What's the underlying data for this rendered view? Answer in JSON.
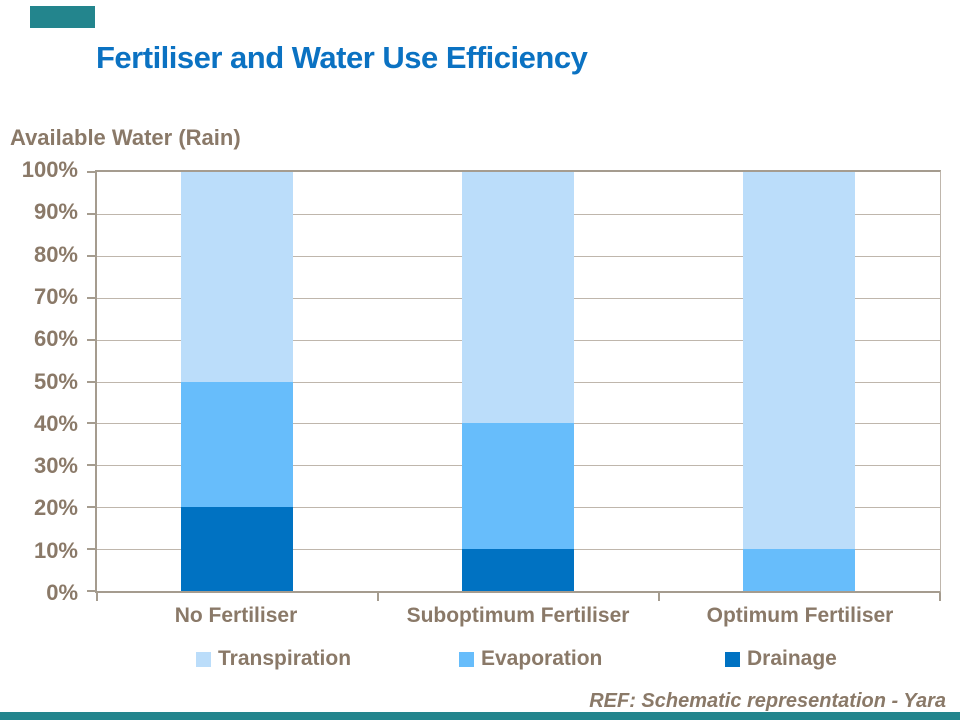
{
  "title": "Fertiliser and Water Use Efficiency",
  "footer_ref": "REF: Schematic representation - Yara",
  "colors": {
    "title_blue": "#0B72C2",
    "brown_text": "#8A7968",
    "teal_accent": "#23858D",
    "grid_line": "#BFB6AC",
    "axis_line": "#A59C8F",
    "transpiration": "#BBDDFA",
    "evaporation": "#67BDFB",
    "drainage": "#0072C2"
  },
  "chart_data": {
    "type": "bar",
    "stacked": true,
    "title": "Fertiliser and Water Use Efficiency",
    "ylabel": "Available Water (Rain)",
    "xlabel": "",
    "categories": [
      "No Fertiliser",
      "Suboptimum Fertiliser",
      "Optimum Fertiliser"
    ],
    "series": [
      {
        "name": "Transpiration",
        "color_key": "transpiration",
        "values": [
          50,
          60,
          90
        ]
      },
      {
        "name": "Evaporation",
        "color_key": "evaporation",
        "values": [
          30,
          30,
          10
        ]
      },
      {
        "name": "Drainage",
        "color_key": "drainage",
        "values": [
          20,
          10,
          0
        ]
      }
    ],
    "ylim": [
      0,
      100
    ],
    "y_ticks": [
      "100%",
      "90%",
      "80%",
      "70%",
      "60%",
      "50%",
      "40%",
      "30%",
      "20%",
      "10%",
      "0%"
    ],
    "grid": true,
    "legend_position": "bottom"
  },
  "legend": [
    {
      "label": "Transpiration",
      "color_key": "transpiration"
    },
    {
      "label": "Evaporation",
      "color_key": "evaporation"
    },
    {
      "label": "Drainage",
      "color_key": "drainage"
    }
  ]
}
